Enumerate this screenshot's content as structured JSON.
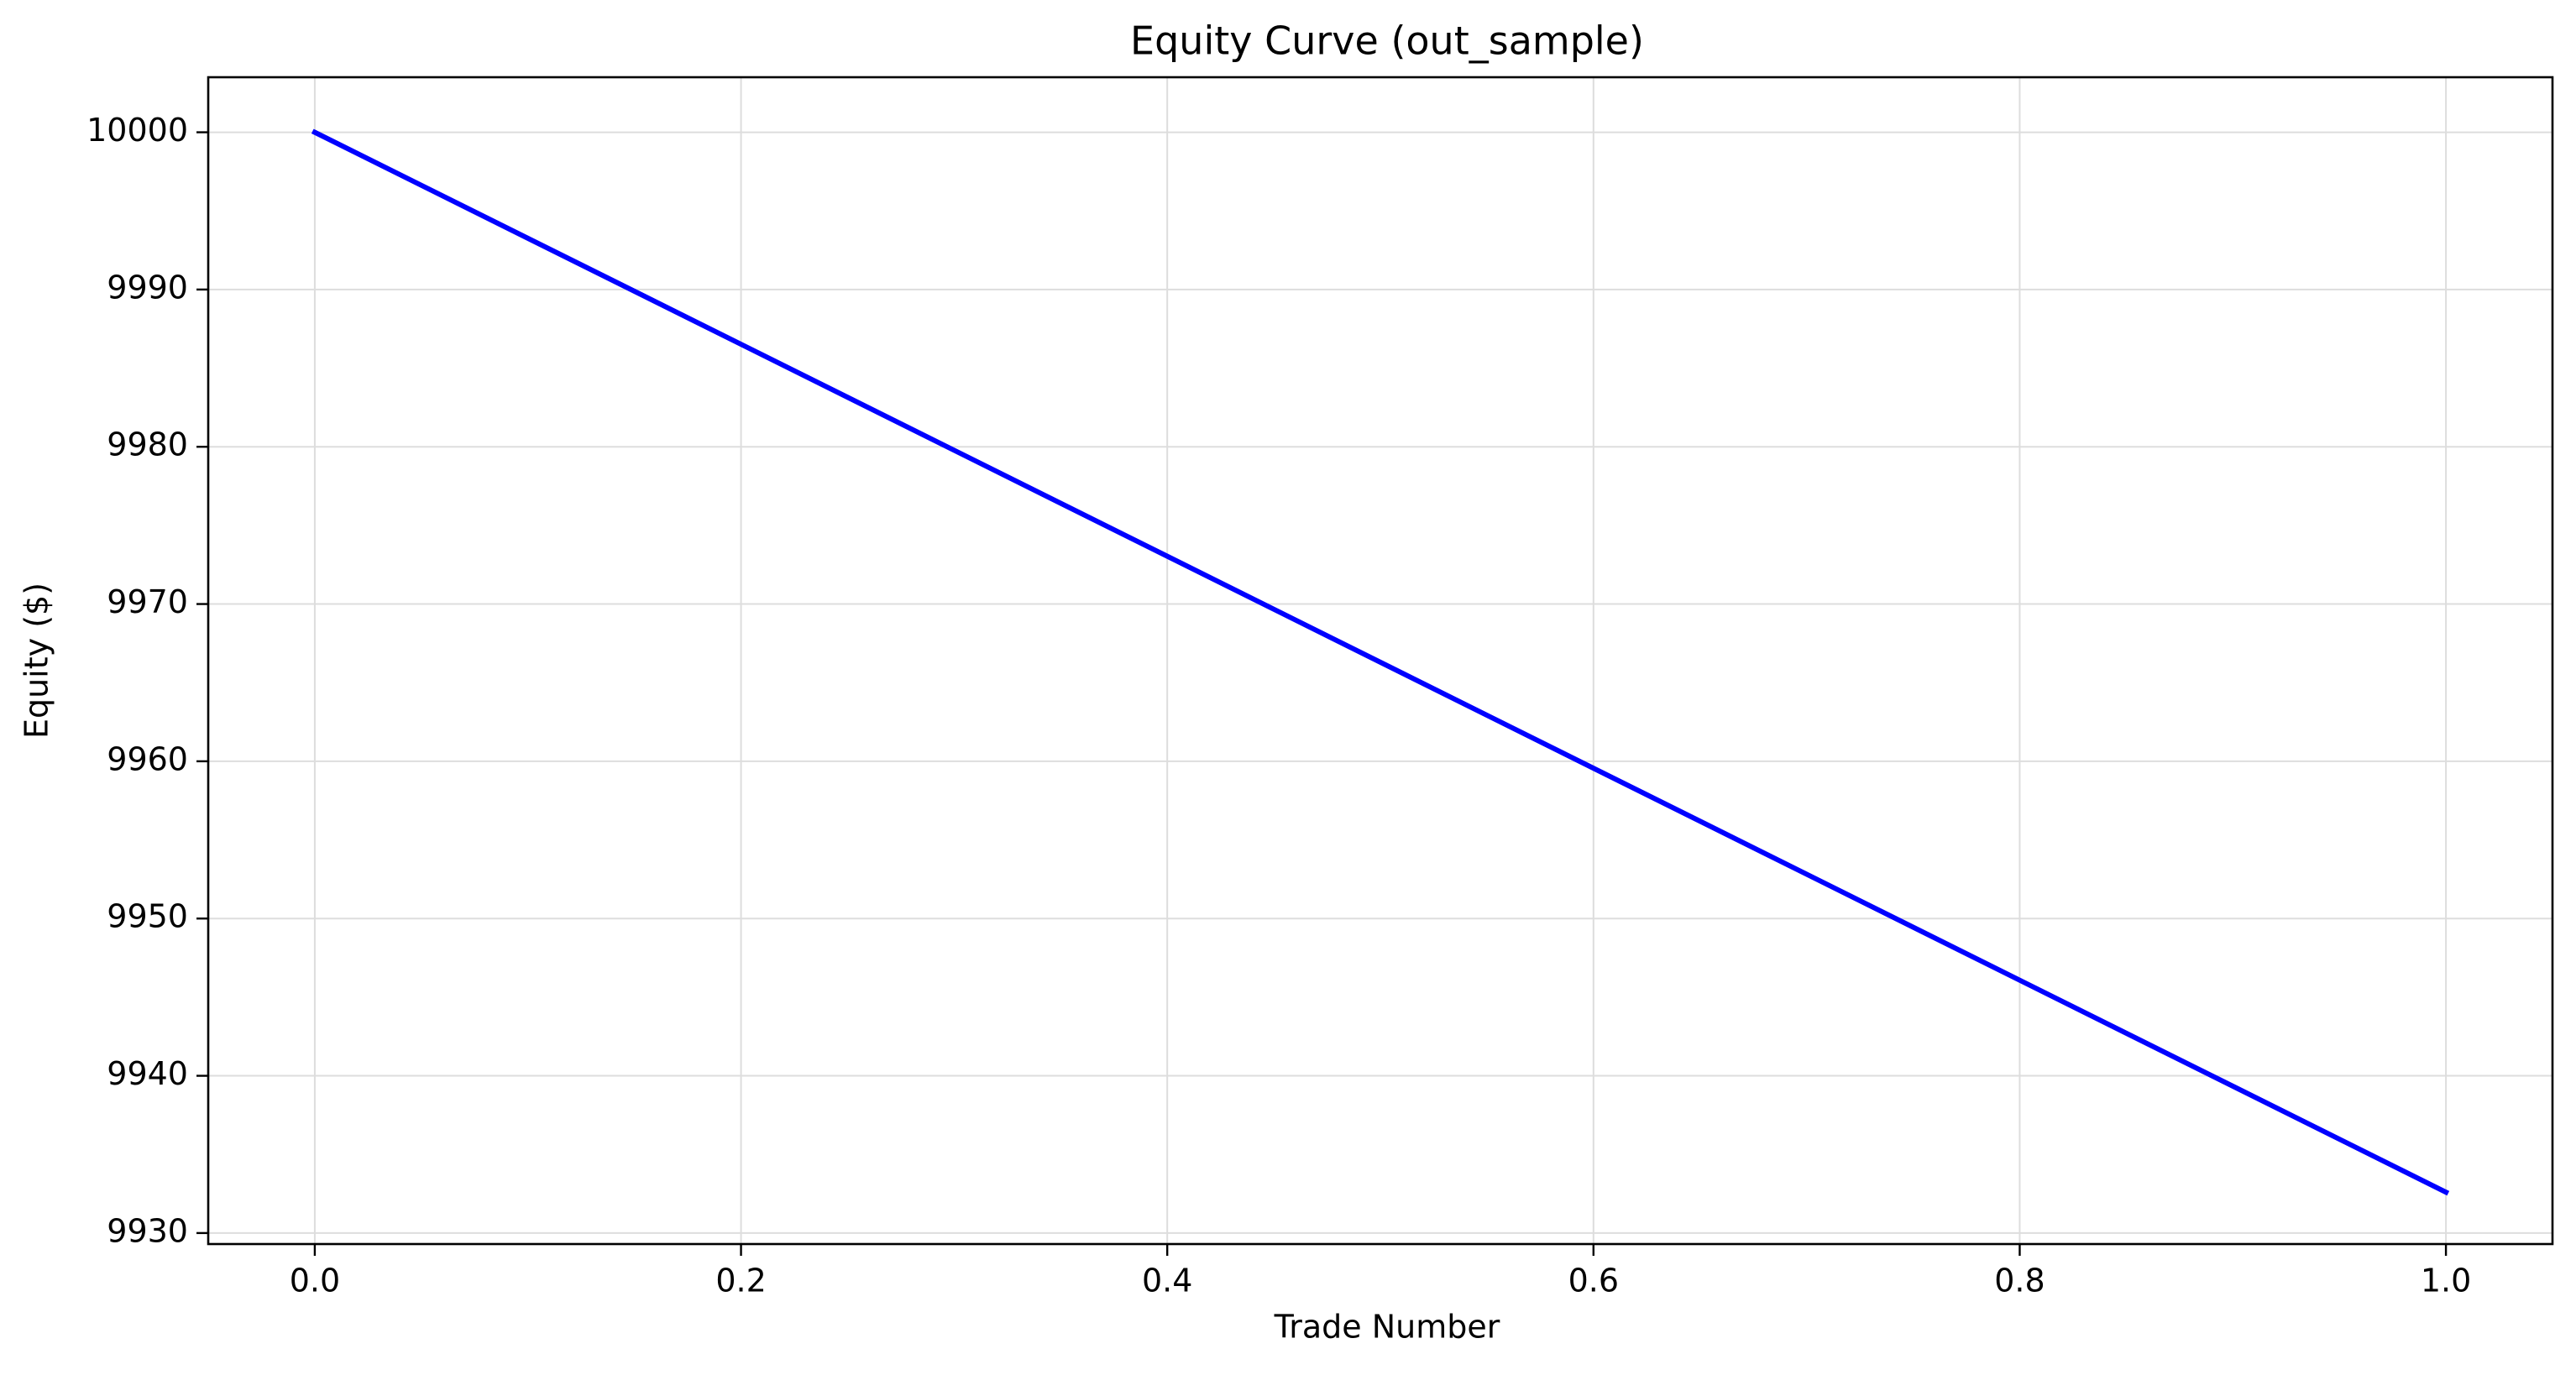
{
  "chart_data": {
    "type": "line",
    "title": "Equity Curve (out_sample)",
    "xlabel": "Trade Number",
    "ylabel": "Equity ($)",
    "xlim": [
      -0.05,
      1.05
    ],
    "ylim": [
      9929.3,
      10003.5
    ],
    "xticks": [
      0.0,
      0.2,
      0.4,
      0.6,
      0.8,
      1.0
    ],
    "xtick_labels": [
      "0.0",
      "0.2",
      "0.4",
      "0.6",
      "0.8",
      "1.0"
    ],
    "yticks": [
      9930,
      9940,
      9950,
      9960,
      9970,
      9980,
      9990,
      10000
    ],
    "ytick_labels": [
      "9930",
      "9940",
      "9950",
      "9960",
      "9970",
      "9980",
      "9990",
      "10000"
    ],
    "grid": true,
    "series": [
      {
        "color": "#0000ff",
        "x": [
          0.0,
          1.0
        ],
        "y": [
          10000,
          9932.6
        ]
      }
    ]
  }
}
